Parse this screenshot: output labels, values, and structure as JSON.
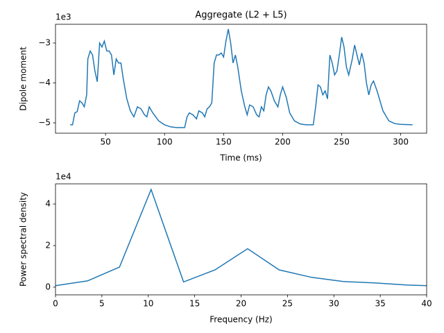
{
  "chart_data": [
    {
      "type": "line",
      "title": "Aggregate (L2 + L5)",
      "x_label": "Time (ms)",
      "y_label": "Dipole moment",
      "y_offset_label": "1e3",
      "color": "#1f77b4",
      "x": [
        20,
        22,
        24,
        26,
        28,
        30,
        32,
        34,
        35,
        37,
        39,
        41,
        43,
        45,
        47,
        49,
        51,
        53,
        55,
        57,
        59,
        61,
        63,
        65,
        68,
        71,
        74,
        77,
        80,
        83,
        85,
        87,
        90,
        95,
        100,
        105,
        110,
        117,
        119,
        121,
        124,
        127,
        129,
        132,
        134,
        136,
        138,
        140,
        142,
        144,
        146,
        148,
        150,
        152,
        154,
        156,
        158,
        160,
        162,
        165,
        168,
        170,
        172,
        175,
        178,
        180,
        182,
        184,
        186,
        188,
        190,
        193,
        196,
        198,
        200,
        203,
        206,
        210,
        215,
        220,
        226,
        228,
        230,
        232,
        234,
        236,
        238,
        240,
        242,
        244,
        246,
        248,
        250,
        252,
        254,
        256,
        259,
        261,
        263,
        265,
        267,
        269,
        271,
        273,
        275,
        277,
        280,
        285,
        290,
        295,
        300,
        310
      ],
      "values": [
        -5.05,
        -5.05,
        -4.75,
        -4.72,
        -4.45,
        -4.5,
        -4.6,
        -4.3,
        -3.4,
        -3.2,
        -3.3,
        -3.7,
        -3.97,
        -3.0,
        -3.1,
        -2.95,
        -3.2,
        -3.2,
        -3.3,
        -3.8,
        -3.4,
        -3.5,
        -3.5,
        -3.9,
        -4.4,
        -4.7,
        -4.85,
        -4.6,
        -4.65,
        -4.8,
        -4.85,
        -4.6,
        -4.75,
        -4.95,
        -5.05,
        -5.1,
        -5.12,
        -5.12,
        -4.85,
        -4.75,
        -4.8,
        -4.9,
        -4.7,
        -4.75,
        -4.85,
        -4.65,
        -4.6,
        -4.5,
        -3.5,
        -3.3,
        -3.3,
        -3.25,
        -3.35,
        -2.95,
        -2.65,
        -3.0,
        -3.5,
        -3.3,
        -3.6,
        -4.2,
        -4.6,
        -4.8,
        -4.55,
        -4.6,
        -4.8,
        -4.85,
        -4.6,
        -4.7,
        -4.3,
        -4.1,
        -4.2,
        -4.45,
        -4.6,
        -4.3,
        -4.1,
        -4.35,
        -4.75,
        -4.95,
        -5.03,
        -5.05,
        -5.05,
        -4.6,
        -4.05,
        -4.1,
        -4.3,
        -4.2,
        -4.4,
        -3.3,
        -3.5,
        -3.8,
        -3.7,
        -3.3,
        -2.85,
        -3.1,
        -3.6,
        -3.8,
        -3.4,
        -3.05,
        -3.3,
        -3.55,
        -3.25,
        -3.5,
        -4.0,
        -4.3,
        -4.05,
        -3.95,
        -4.2,
        -4.7,
        -4.95,
        -5.02,
        -5.04,
        -5.05
      ],
      "xlim": [
        7.6,
        322
      ],
      "xticks": [
        50,
        100,
        150,
        200,
        250,
        300
      ],
      "ylim": [
        -5.26,
        -2.53
      ],
      "yticks": [
        {
          "value": -5,
          "label": "−5"
        },
        {
          "value": -4,
          "label": "−4"
        },
        {
          "value": -3,
          "label": "−3"
        }
      ]
    },
    {
      "type": "line",
      "x_label": "Frequency (Hz)",
      "y_label": "Power spectral density",
      "y_offset_label": "1e4",
      "color": "#1f77b4",
      "x": [
        0,
        3.45,
        6.9,
        10.3,
        13.8,
        17.2,
        20.7,
        24.1,
        27.6,
        31.0,
        34.5,
        37.9,
        40
      ],
      "values": [
        0.07,
        0.3,
        0.97,
        4.7,
        0.25,
        0.83,
        1.85,
        0.83,
        0.47,
        0.27,
        0.2,
        0.1,
        0.07
      ],
      "xlim": [
        0,
        40
      ],
      "xticks": [
        0,
        5,
        10,
        15,
        20,
        25,
        30,
        35,
        40
      ],
      "ylim": [
        -0.37,
        4.97
      ],
      "yticks": [
        0,
        2,
        4
      ]
    }
  ]
}
